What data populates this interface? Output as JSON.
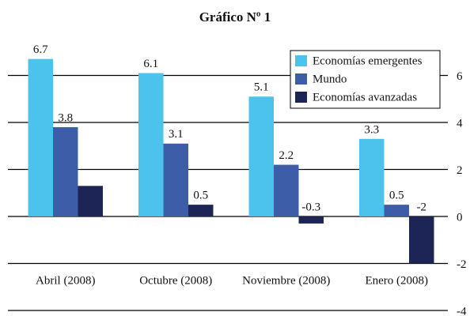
{
  "chart_data": {
    "type": "bar",
    "title": "Gráfico Nº 1",
    "categories": [
      "Abril (2008)",
      "Octubre (2008)",
      "Noviembre (2008)",
      "Enero (2008)"
    ],
    "series": [
      {
        "name": "Economías emergentes",
        "color": "#4cc3ec",
        "values": [
          6.7,
          6.1,
          5.1,
          3.3
        ]
      },
      {
        "name": "Mundo",
        "color": "#3e5da8",
        "values": [
          3.8,
          3.1,
          2.2,
          0.5
        ]
      },
      {
        "name": "Economías avanzadas",
        "color": "#1d2456",
        "values": [
          1.3,
          0.5,
          -0.3,
          -2
        ]
      }
    ],
    "data_labels": [
      [
        true,
        true,
        true,
        true
      ],
      [
        true,
        true,
        true,
        true
      ],
      [
        false,
        true,
        true,
        true
      ]
    ],
    "ylim": [
      -4,
      7
    ],
    "yticks": [
      6,
      4,
      2,
      0,
      -2,
      -4
    ],
    "grid": true,
    "legend": "upper right"
  }
}
